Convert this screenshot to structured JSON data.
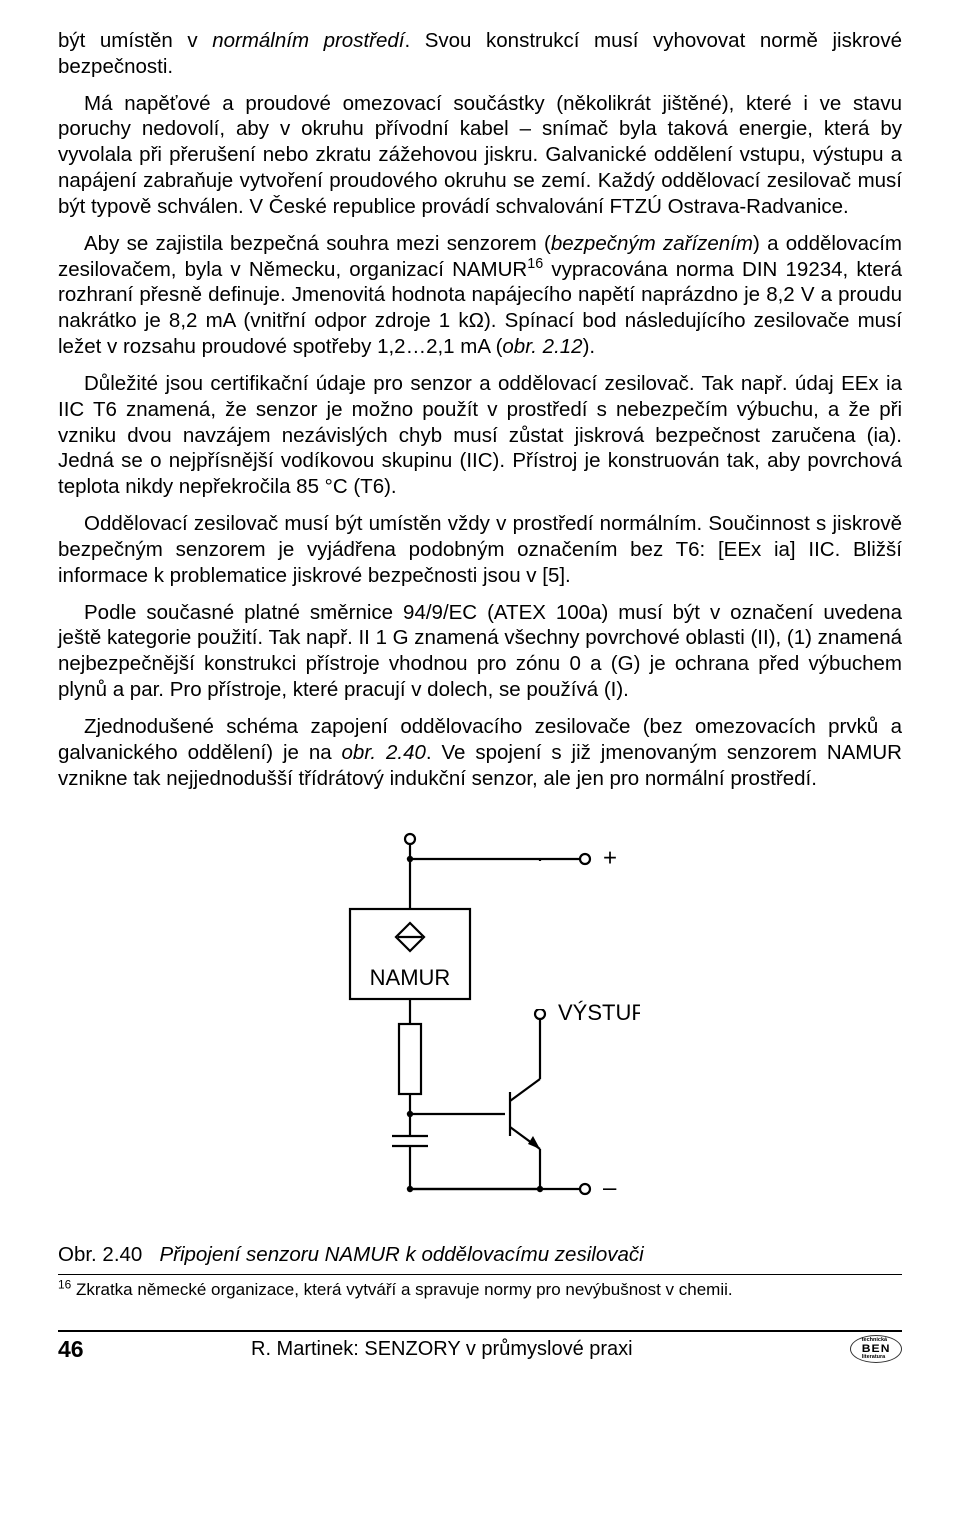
{
  "paragraphs": {
    "p1a": "být umístěn v ",
    "p1b": "normálním prostředí",
    "p1c": ". Svou konstrukcí musí vyhovovat normě jiskrové bezpečnosti.",
    "p2": "Má napěťové a proudové omezovací součástky (několikrát jištěné), které i ve stavu poruchy nedovolí, aby v okruhu přívodní kabel – snímač byla taková energie, která by vyvolala při přerušení nebo zkratu zážehovou jiskru. Galvanické oddělení vstupu, výstupu a napájení zabraňuje vytvoření proudového okruhu se zemí. Každý oddělovací zesilovač musí být typově schválen. V České republice provádí schvalování FTZÚ Ostrava-Radvanice.",
    "p3a": "Aby se zajistila bezpečná souhra mezi senzorem (",
    "p3b": "bezpečným zařízením",
    "p3c": ") a oddělovacím zesilovačem, byla v Německu, organizací NAMUR",
    "p3sup": "16",
    "p3d": " vypracována norma DIN 19234, která rozhraní přesně definuje. Jmenovitá hodnota napájecího napětí naprázdno je 8,2 V a proudu nakrátko je 8,2 mA (vnitřní odpor zdroje 1 kΩ). Spínací bod následujícího zesilovače musí ležet v rozsahu proudové spotřeby 1,2…2,1 mA (",
    "p3e": "obr. 2.12",
    "p3f": ").",
    "p4": "Důležité jsou certifikační údaje pro senzor a oddělovací zesilovač. Tak např. údaj EEx ia IIC T6 znamená, že senzor je možno použít v prostředí s nebezpečím výbuchu, a že při vzniku dvou navzájem nezávislých chyb musí zůstat jiskrová bezpečnost zaručena (ia). Jedná se o nejpřísnější vodíkovou skupinu (IIC). Přístroj je konstruován tak, aby povrchová teplota nikdy nepřekročila 85 °C (T6).",
    "p5": "Oddělovací zesilovač musí být umístěn vždy v prostředí normálním. Součinnost s jiskrově bezpečným senzorem je vyjádřena podobným označením bez T6: [EEx ia] IIC. Bližší informace k problematice jiskrové bezpečnosti jsou v [5].",
    "p6": "Podle současné platné směrnice 94/9/EC (ATEX 100a) musí být v označení uvedena ještě kategorie použití. Tak např. II 1 G znamená všechny povrchové oblasti (II), (1) znamená nejbezpečnější konstrukci přístroje vhodnou pro zónu 0 a (G) je ochrana před výbuchem plynů a par. Pro přístroje, které pracují v dolech, se používá (I).",
    "p7a": "Zjednodušené schéma zapojení oddělovacího zesilovače (bez omezovacích prvků a galvanického oddělení) je na ",
    "p7b": "obr. 2.40",
    "p7c": ". Ve spojení s již jmenovaným senzorem NAMUR vznikne tak nejjednodušší třídrátový indukční senzor, ale jen pro normální prostředí."
  },
  "figure": {
    "label_namur": "NAMUR",
    "label_vystup": "VÝSTUP",
    "plus": "+",
    "minus": "–",
    "stroke": "#000000",
    "stroke_width": 2.2,
    "font_family": "Arial, Helvetica, sans-serif",
    "label_big_size": 22,
    "symbol_size": 24,
    "box_fill": "#ffffff"
  },
  "caption": {
    "pre": "Obr. 2.40",
    "text": "Připojení senzoru NAMUR k oddělovacímu zesilovači"
  },
  "footnote": {
    "num": "16",
    "text": " Zkratka německé organizace, která vytváří a spravuje normy pro nevýbušnost v chemii."
  },
  "footer": {
    "page": "46",
    "title": "R. Martinek: SENZORY v průmyslové praxi",
    "logo_main": "BEN",
    "logo_top": "technická",
    "logo_bottom": "literatura"
  }
}
